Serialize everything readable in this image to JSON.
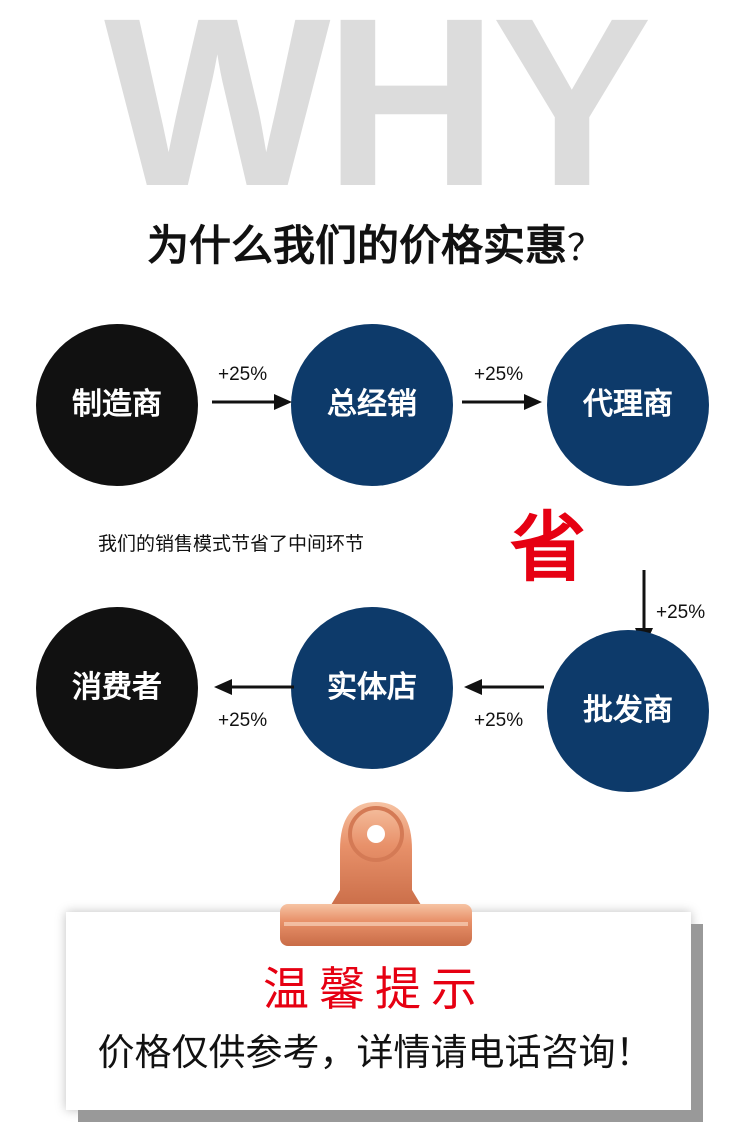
{
  "watermark": "WHY",
  "title": "为什么我们的价格实惠",
  "title_mark": "？",
  "nodes": {
    "manufacturer": "制造商",
    "general_distributor": "总经销",
    "agent": "代理商",
    "wholesaler": "批发商",
    "store": "实体店",
    "consumer": "消费者"
  },
  "markup": "+25%",
  "note": "我们的销售模式节省了中间环节",
  "save": "省",
  "tip": {
    "title": "温馨提示",
    "body": "价格仅供参考，详情请电话咨询！"
  },
  "colors": {
    "blue": "#0d3a6a",
    "black": "#111111",
    "red": "#e60012",
    "clip": "#e8916a"
  }
}
